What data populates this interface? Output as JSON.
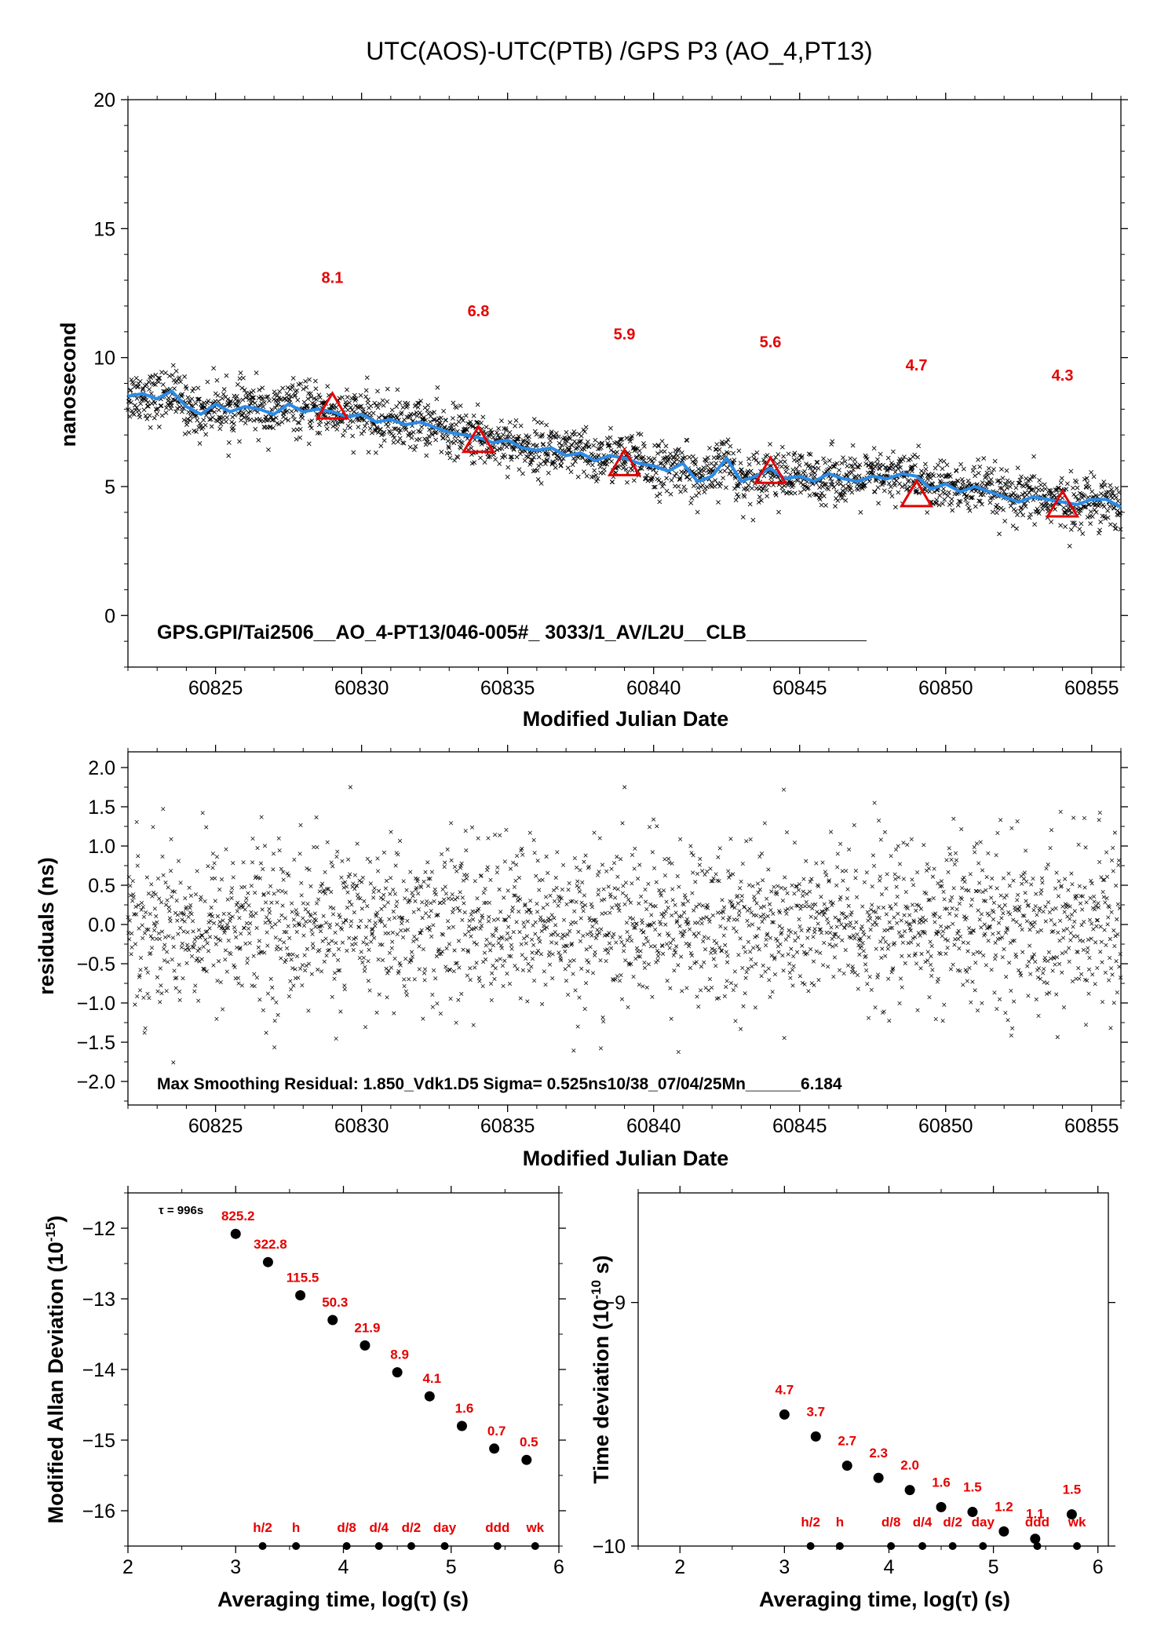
{
  "title": "UTC(AOS)-UTC(PTB)  /GPS  P3  (AO_4,PT13)",
  "colors": {
    "smooth_line": "#2b8be6",
    "marker": "#e60000",
    "annotation": "#e60000",
    "scatter": "#000000"
  },
  "chart_data": [
    {
      "type": "scatter",
      "name": "time-series",
      "ylabel": "nanosecond",
      "xlabel": "Modified Julian Date",
      "xlim": [
        60822,
        60856
      ],
      "ylim": [
        -2,
        20
      ],
      "xticks": [
        60825,
        60830,
        60835,
        60840,
        60845,
        60850,
        60855
      ],
      "xtick_labels": [
        "60825",
        "60830",
        "60835",
        "60840",
        "60845",
        "60850",
        "60855"
      ],
      "yticks": [
        0,
        5,
        10,
        15,
        20
      ],
      "ytick_labels": [
        "0",
        "5",
        "10",
        "15",
        "20"
      ],
      "smooth_line": {
        "x": [
          60822,
          60822.5,
          60823,
          60823.5,
          60824,
          60824.5,
          60825,
          60825.5,
          60826,
          60826.5,
          60827,
          60827.5,
          60828,
          60828.5,
          60829,
          60829.5,
          60830,
          60830.5,
          60831,
          60831.5,
          60832,
          60832.5,
          60833,
          60833.5,
          60834,
          60834.5,
          60835,
          60835.5,
          60836,
          60836.5,
          60837,
          60837.5,
          60838,
          60838.5,
          60839,
          60839.5,
          60840,
          60840.5,
          60841,
          60841.5,
          60842,
          60842.5,
          60843,
          60843.5,
          60844,
          60844.5,
          60845,
          60845.5,
          60846,
          60846.5,
          60847,
          60847.5,
          60848,
          60848.5,
          60849,
          60849.5,
          60850,
          60850.5,
          60851,
          60851.5,
          60852,
          60852.5,
          60853,
          60853.5,
          60854,
          60854.5,
          60855,
          60855.5,
          60856
        ],
        "y": [
          8.5,
          8.6,
          8.4,
          8.7,
          8.1,
          7.8,
          8.2,
          7.9,
          8.1,
          8.0,
          7.8,
          8.2,
          7.9,
          8.0,
          7.9,
          7.7,
          7.8,
          7.5,
          7.6,
          7.4,
          7.5,
          7.3,
          7.1,
          7.0,
          6.9,
          6.7,
          6.8,
          6.5,
          6.4,
          6.5,
          6.2,
          6.3,
          6.0,
          6.2,
          6.1,
          5.9,
          5.8,
          5.6,
          5.9,
          5.2,
          5.4,
          6.1,
          5.2,
          5.4,
          5.7,
          5.3,
          5.4,
          5.2,
          5.5,
          5.3,
          5.2,
          5.4,
          5.3,
          5.5,
          5.4,
          4.9,
          5.1,
          4.8,
          5.0,
          4.8,
          4.6,
          4.4,
          4.6,
          4.5,
          4.4,
          4.3,
          4.5,
          4.5,
          4.2
        ]
      },
      "markers": {
        "x": [
          60829,
          60834,
          60839,
          60844,
          60849,
          60854
        ],
        "y": [
          8.1,
          6.8,
          5.9,
          5.6,
          4.7,
          4.3
        ],
        "labels": [
          "8.1",
          "6.8",
          "5.9",
          "5.6",
          "4.7",
          "4.3"
        ],
        "label_y": [
          12.9,
          11.6,
          10.7,
          10.4,
          9.5,
          9.1
        ]
      },
      "annotation": "GPS.GPI/Tai2506__AO_4-PT13/046-005#_  3033/1_AV/L2U__CLB___________"
    },
    {
      "type": "scatter",
      "name": "residuals",
      "ylabel": "residuals (ns)",
      "xlabel": "Modified Julian Date",
      "xlim": [
        60822,
        60856
      ],
      "ylim": [
        -2.3,
        2.2
      ],
      "xticks": [
        60825,
        60830,
        60835,
        60840,
        60845,
        60850,
        60855
      ],
      "xtick_labels": [
        "60825",
        "60830",
        "60835",
        "60840",
        "60845",
        "60850",
        "60855"
      ],
      "yticks": [
        2.0,
        1.5,
        1.0,
        0.5,
        0.0,
        -0.5,
        -1.0,
        -1.5,
        -2.0
      ],
      "ytick_labels": [
        "2.0",
        "1.5",
        "1.0",
        "0.5",
        "0.0",
        "−0.5",
        "−1.0",
        "−1.5",
        "−2.0"
      ],
      "annotation": "Max Smoothing Residual: 1.850_Vdk1.D5  Sigma= 0.525ns10/38_07/04/25Mn______6.184"
    },
    {
      "type": "scatter",
      "name": "modified-allan-deviation",
      "ylabel": "Modified Allan Deviation (10",
      "ylabel_exp": "-15",
      "ylabel_tail": ")",
      "xlabel": "Averaging time, log(τ) (s)",
      "xlim": [
        2,
        6
      ],
      "ylim": [
        -16.5,
        -11.5
      ],
      "xticks": [
        2,
        3,
        4,
        5,
        6
      ],
      "xtick_labels": [
        "2",
        "3",
        "4",
        "5",
        "6"
      ],
      "yticks": [
        -12,
        -13,
        -14,
        -15,
        -16
      ],
      "ytick_labels": [
        "−12",
        "−13",
        "−14",
        "−15",
        "−16"
      ],
      "tau_label": "τ = 996s",
      "x": [
        3.0,
        3.3,
        3.6,
        3.9,
        4.2,
        4.5,
        4.8,
        5.1,
        5.4,
        5.7
      ],
      "y": [
        -12.08,
        -12.48,
        -12.95,
        -13.3,
        -13.66,
        -14.04,
        -14.38,
        -14.8,
        -15.12,
        -15.28
      ],
      "labels": [
        "825.2",
        "322.8",
        "115.5",
        "50.3",
        "21.9",
        "8.9",
        "4.1",
        "1.6",
        "0.7",
        "0.5"
      ],
      "markers_bottom": {
        "x": [
          3.25,
          3.56,
          4.03,
          4.33,
          4.63,
          4.94,
          5.43,
          5.78
        ],
        "labels": [
          "h/2",
          "h",
          "d/8",
          "d/4",
          "d/2",
          "day",
          "ddd",
          "wk"
        ]
      }
    },
    {
      "type": "scatter",
      "name": "time-deviation",
      "ylabel": "Time deviation (10",
      "ylabel_exp": "-10",
      "ylabel_tail": " s)",
      "xlabel": "Averaging time, log(τ) (s)",
      "xlim": [
        1.6,
        6.1
      ],
      "ylim": [
        -10,
        -8.55
      ],
      "xticks": [
        2,
        3,
        4,
        5,
        6
      ],
      "xtick_labels": [
        "2",
        "3",
        "4",
        "5",
        "6"
      ],
      "yticks": [
        -9,
        -10
      ],
      "ytick_labels": [
        "−9",
        "−10"
      ],
      "x": [
        3.0,
        3.3,
        3.6,
        3.9,
        4.2,
        4.5,
        4.8,
        5.1,
        5.4,
        5.75
      ],
      "y": [
        -9.46,
        -9.55,
        -9.67,
        -9.72,
        -9.77,
        -9.84,
        -9.86,
        -9.94,
        -9.97,
        -9.87
      ],
      "labels": [
        "4.7",
        "3.7",
        "2.7",
        "2.3",
        "2.0",
        "1.6",
        "1.5",
        "1.2",
        "1.1",
        "1.5"
      ],
      "markers_bottom": {
        "x": [
          3.25,
          3.53,
          4.02,
          4.32,
          4.61,
          4.9,
          5.42,
          5.8
        ],
        "labels": [
          "h/2",
          "h",
          "d/8",
          "d/4",
          "d/2",
          "day",
          "ddd",
          "wk"
        ]
      }
    }
  ]
}
